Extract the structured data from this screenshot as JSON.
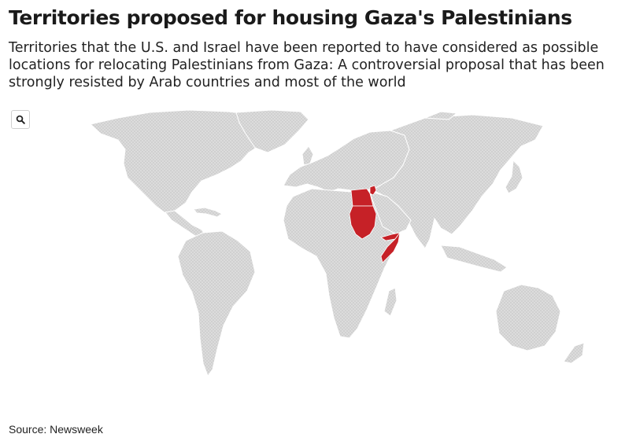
{
  "header": {
    "title": "Territories proposed for housing Gaza's Palestinians",
    "subtitle": "Territories that the U.S. and Israel have been reported to have considered as possible locations for relocating Palestinians from Gaza: A controversial proposal that has been strongly resisted by Arab countries and most of the world"
  },
  "controls": {
    "zoom_icon": "search-icon"
  },
  "map": {
    "land_color": "#d9d9d9",
    "highlight_color": "#c62127",
    "highlighted_territories": [
      "Egypt",
      "Sudan",
      "Somalia",
      "Somaliland",
      "Puntland",
      "Gaza"
    ]
  },
  "footer": {
    "source": "Source: Newsweek"
  }
}
